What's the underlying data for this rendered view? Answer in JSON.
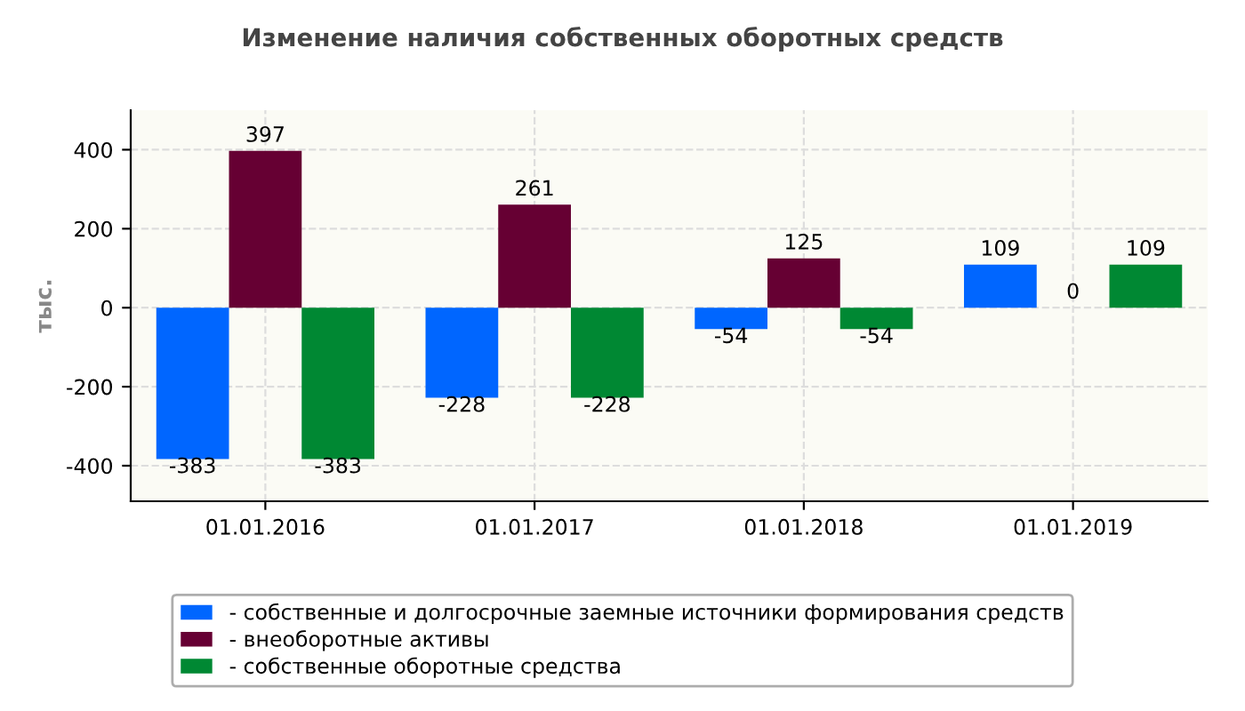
{
  "chart_data": {
    "type": "bar",
    "title": "Изменение наличия собственных оборотных средств",
    "ylabel": "тыс.",
    "categories": [
      "01.01.2016",
      "01.01.2017",
      "01.01.2018",
      "01.01.2019"
    ],
    "series": [
      {
        "name": "- собственные и долгосрочные заемные источники формирования средств",
        "color": "#0066ff",
        "values": [
          -383,
          -228,
          -54,
          109
        ]
      },
      {
        "name": "- внеоборотные активы",
        "color": "#660033",
        "values": [
          397,
          261,
          125,
          0
        ]
      },
      {
        "name": "- собственные оборотные средства",
        "color": "#008833",
        "values": [
          -383,
          -228,
          -54,
          109
        ]
      }
    ],
    "ylim": [
      -490,
      500
    ],
    "yticks": [
      -400,
      -200,
      0,
      200,
      400
    ],
    "grid": true,
    "legend": "bottom",
    "data_labels": true
  }
}
